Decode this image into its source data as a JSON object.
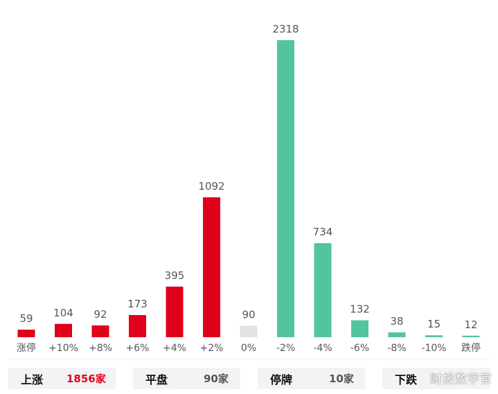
{
  "chart_data": {
    "type": "bar",
    "categories": [
      "涨停",
      "+10%",
      "+8%",
      "+6%",
      "+4%",
      "+2%",
      "0%",
      "-2%",
      "-4%",
      "-6%",
      "-8%",
      "-10%",
      "跌停"
    ],
    "values": [
      59,
      104,
      92,
      173,
      395,
      1092,
      90,
      2318,
      734,
      132,
      38,
      15,
      12
    ],
    "colors": [
      "#e0001a",
      "#e0001a",
      "#e0001a",
      "#e0001a",
      "#e0001a",
      "#e0001a",
      "#e3e3e3",
      "#52c4a0",
      "#52c4a0",
      "#52c4a0",
      "#52c4a0",
      "#52c4a0",
      "#52c4a0"
    ],
    "title": "",
    "xlabel": "",
    "ylabel": "",
    "ylim": [
      0,
      2318
    ],
    "grid": false,
    "legend": "none"
  },
  "summary": {
    "up": {
      "label": "上涨",
      "value": "1856家"
    },
    "flat": {
      "label": "平盘",
      "value": "90家"
    },
    "halt": {
      "label": "停牌",
      "value": "10家"
    },
    "down": {
      "label": "下跌",
      "value": ""
    }
  },
  "watermark": "财报数字官"
}
